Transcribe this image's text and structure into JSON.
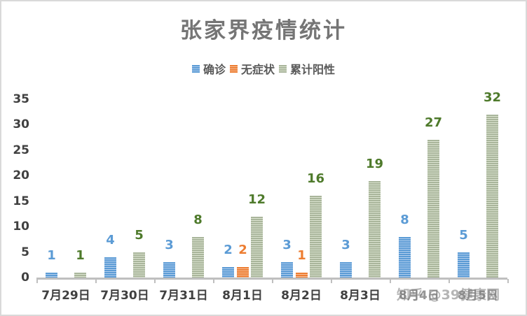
{
  "chart_data": {
    "type": "bar",
    "title": "张家界疫情统计",
    "xlabel": "",
    "ylabel": "",
    "ylim": [
      0,
      35
    ],
    "yticks": [
      0,
      5,
      10,
      15,
      20,
      25,
      30,
      35
    ],
    "grid": false,
    "legend_position": "top",
    "categories": [
      "7月29日",
      "7月30日",
      "7月31日",
      "8月1日",
      "8月2日",
      "8月3日",
      "8月4日",
      "8月5日"
    ],
    "series": [
      {
        "name": "确诊",
        "color": "#5b9bd5",
        "values": [
          1,
          4,
          3,
          2,
          3,
          3,
          8,
          5
        ]
      },
      {
        "name": "无症状",
        "color": "#ed7d31",
        "values": [
          null,
          null,
          null,
          2,
          1,
          null,
          null,
          null
        ]
      },
      {
        "name": "累计阳性",
        "color": "#a9b59b",
        "values": [
          1,
          5,
          8,
          12,
          16,
          19,
          27,
          32
        ]
      }
    ],
    "data_label_colors": {
      "确诊": "#5b9bd5",
      "无症状": "#ed7d31",
      "累计阳性": "#4e7a2b"
    }
  },
  "title": "张家界疫情统计",
  "legend": [
    {
      "label": "确诊",
      "color": "#5b9bd5"
    },
    {
      "label": "无症状",
      "color": "#ed7d31"
    },
    {
      "label": "累计阳性",
      "color": "#a9b59b"
    }
  ],
  "yticks": [
    "35",
    "30",
    "25",
    "20",
    "15",
    "10",
    "5",
    "0"
  ],
  "watermark": "知乎 @39健康网"
}
